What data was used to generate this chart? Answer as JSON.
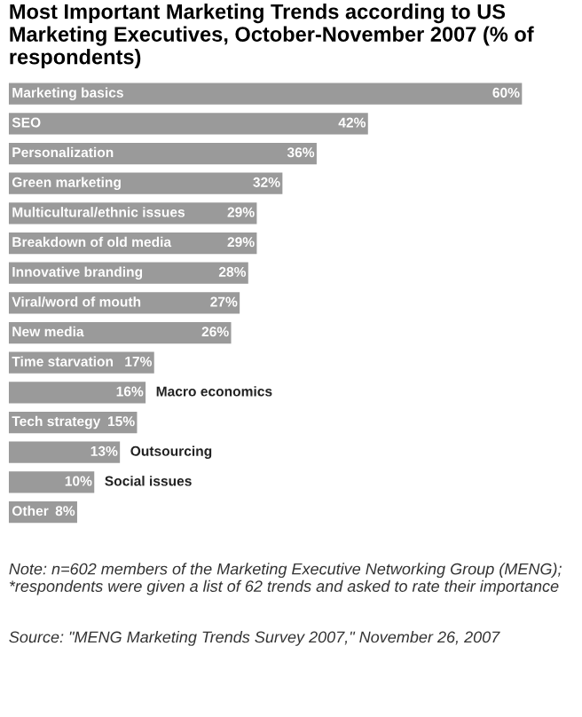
{
  "chart_data": {
    "type": "bar",
    "orientation": "horizontal",
    "title": "Most Important Marketing Trends according to US Marketing Executives, October-November 2007 (% of respondents)",
    "categories": [
      "Marketing basics",
      "SEO",
      "Personalization",
      "Green marketing",
      "Multicultural/ethnic issues",
      "Breakdown of old media",
      "Innovative branding",
      "Viral/word of mouth",
      "New media",
      "Time starvation",
      "Macro economics",
      "Tech strategy",
      "Outsourcing",
      "Social issues",
      "Other"
    ],
    "values": [
      60,
      42,
      36,
      32,
      29,
      29,
      28,
      27,
      26,
      17,
      16,
      15,
      13,
      10,
      8
    ],
    "value_labels": [
      "60%",
      "42%",
      "36%",
      "32%",
      "29%",
      "29%",
      "28%",
      "27%",
      "26%",
      "17%",
      "16%",
      "15%",
      "13%",
      "10%",
      "8%"
    ],
    "color": "#9a9a9a",
    "annotations": [
      "Note: n=602 members of the Marketing Executive Networking Group (MENG); *respondents were given a list of 62 trends and asked to rate their importance",
      "Source: \"MENG Marketing Trends Survey 2007,\" November 26, 2007"
    ]
  }
}
